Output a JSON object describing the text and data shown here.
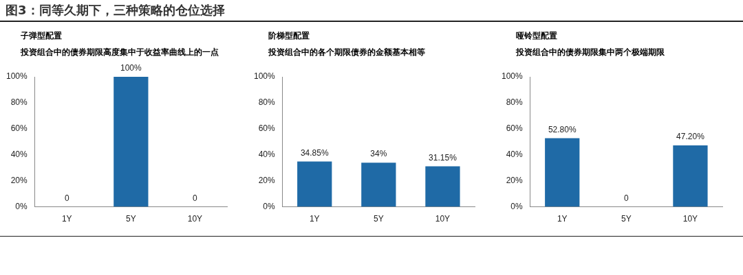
{
  "chart_data": [
    {
      "type": "bar",
      "title": "子弹型配置",
      "subtitle": "投资组合中的债券期限高度集中于收益率曲线上的一点",
      "annotations": [
        "图3：同等久期下，三种策略的仓位选择"
      ],
      "categories": [
        "1Y",
        "5Y",
        "10Y"
      ],
      "values": [
        0,
        100,
        0
      ],
      "value_labels": [
        "0",
        "100%",
        "0"
      ],
      "color": "#1f6aa6",
      "ylim": [
        0,
        100
      ],
      "yticks": [
        {
          "value": 0,
          "label": "0%"
        },
        {
          "value": 20,
          "label": "20%"
        },
        {
          "value": 40,
          "label": "40%"
        },
        {
          "value": 60,
          "label": "60%"
        },
        {
          "value": 80,
          "label": "80%"
        },
        {
          "value": 100,
          "label": "100%"
        }
      ],
      "grid": false,
      "legend": false
    },
    {
      "type": "bar",
      "title": "阶梯型配置",
      "subtitle": "投资组合中的各个期限债券的金额基本相等",
      "categories": [
        "1Y",
        "5Y",
        "10Y"
      ],
      "values": [
        34.85,
        34,
        31.15
      ],
      "value_labels": [
        "34.85%",
        "34%",
        "31.15%"
      ],
      "color": "#1f6aa6",
      "ylim": [
        0,
        100
      ],
      "yticks": [
        {
          "value": 0,
          "label": "0%"
        },
        {
          "value": 20,
          "label": "20%"
        },
        {
          "value": 40,
          "label": "40%"
        },
        {
          "value": 60,
          "label": "60%"
        },
        {
          "value": 80,
          "label": "80%"
        },
        {
          "value": 100,
          "label": "100%"
        }
      ],
      "grid": false,
      "legend": false
    },
    {
      "type": "bar",
      "title": "哑铃型配置",
      "subtitle": "投资组合中的债券期限集中两个极端期限",
      "categories": [
        "1Y",
        "5Y",
        "10Y"
      ],
      "values": [
        52.8,
        0,
        47.2
      ],
      "value_labels": [
        "52.80%",
        "0",
        "47.20%"
      ],
      "color": "#1f6aa6",
      "ylim": [
        0,
        100
      ],
      "yticks": [
        {
          "value": 0,
          "label": "0%"
        },
        {
          "value": 20,
          "label": "20%"
        },
        {
          "value": 40,
          "label": "40%"
        },
        {
          "value": 60,
          "label": "60%"
        },
        {
          "value": 80,
          "label": "80%"
        },
        {
          "value": 100,
          "label": "100%"
        }
      ],
      "grid": false,
      "legend": false
    }
  ]
}
